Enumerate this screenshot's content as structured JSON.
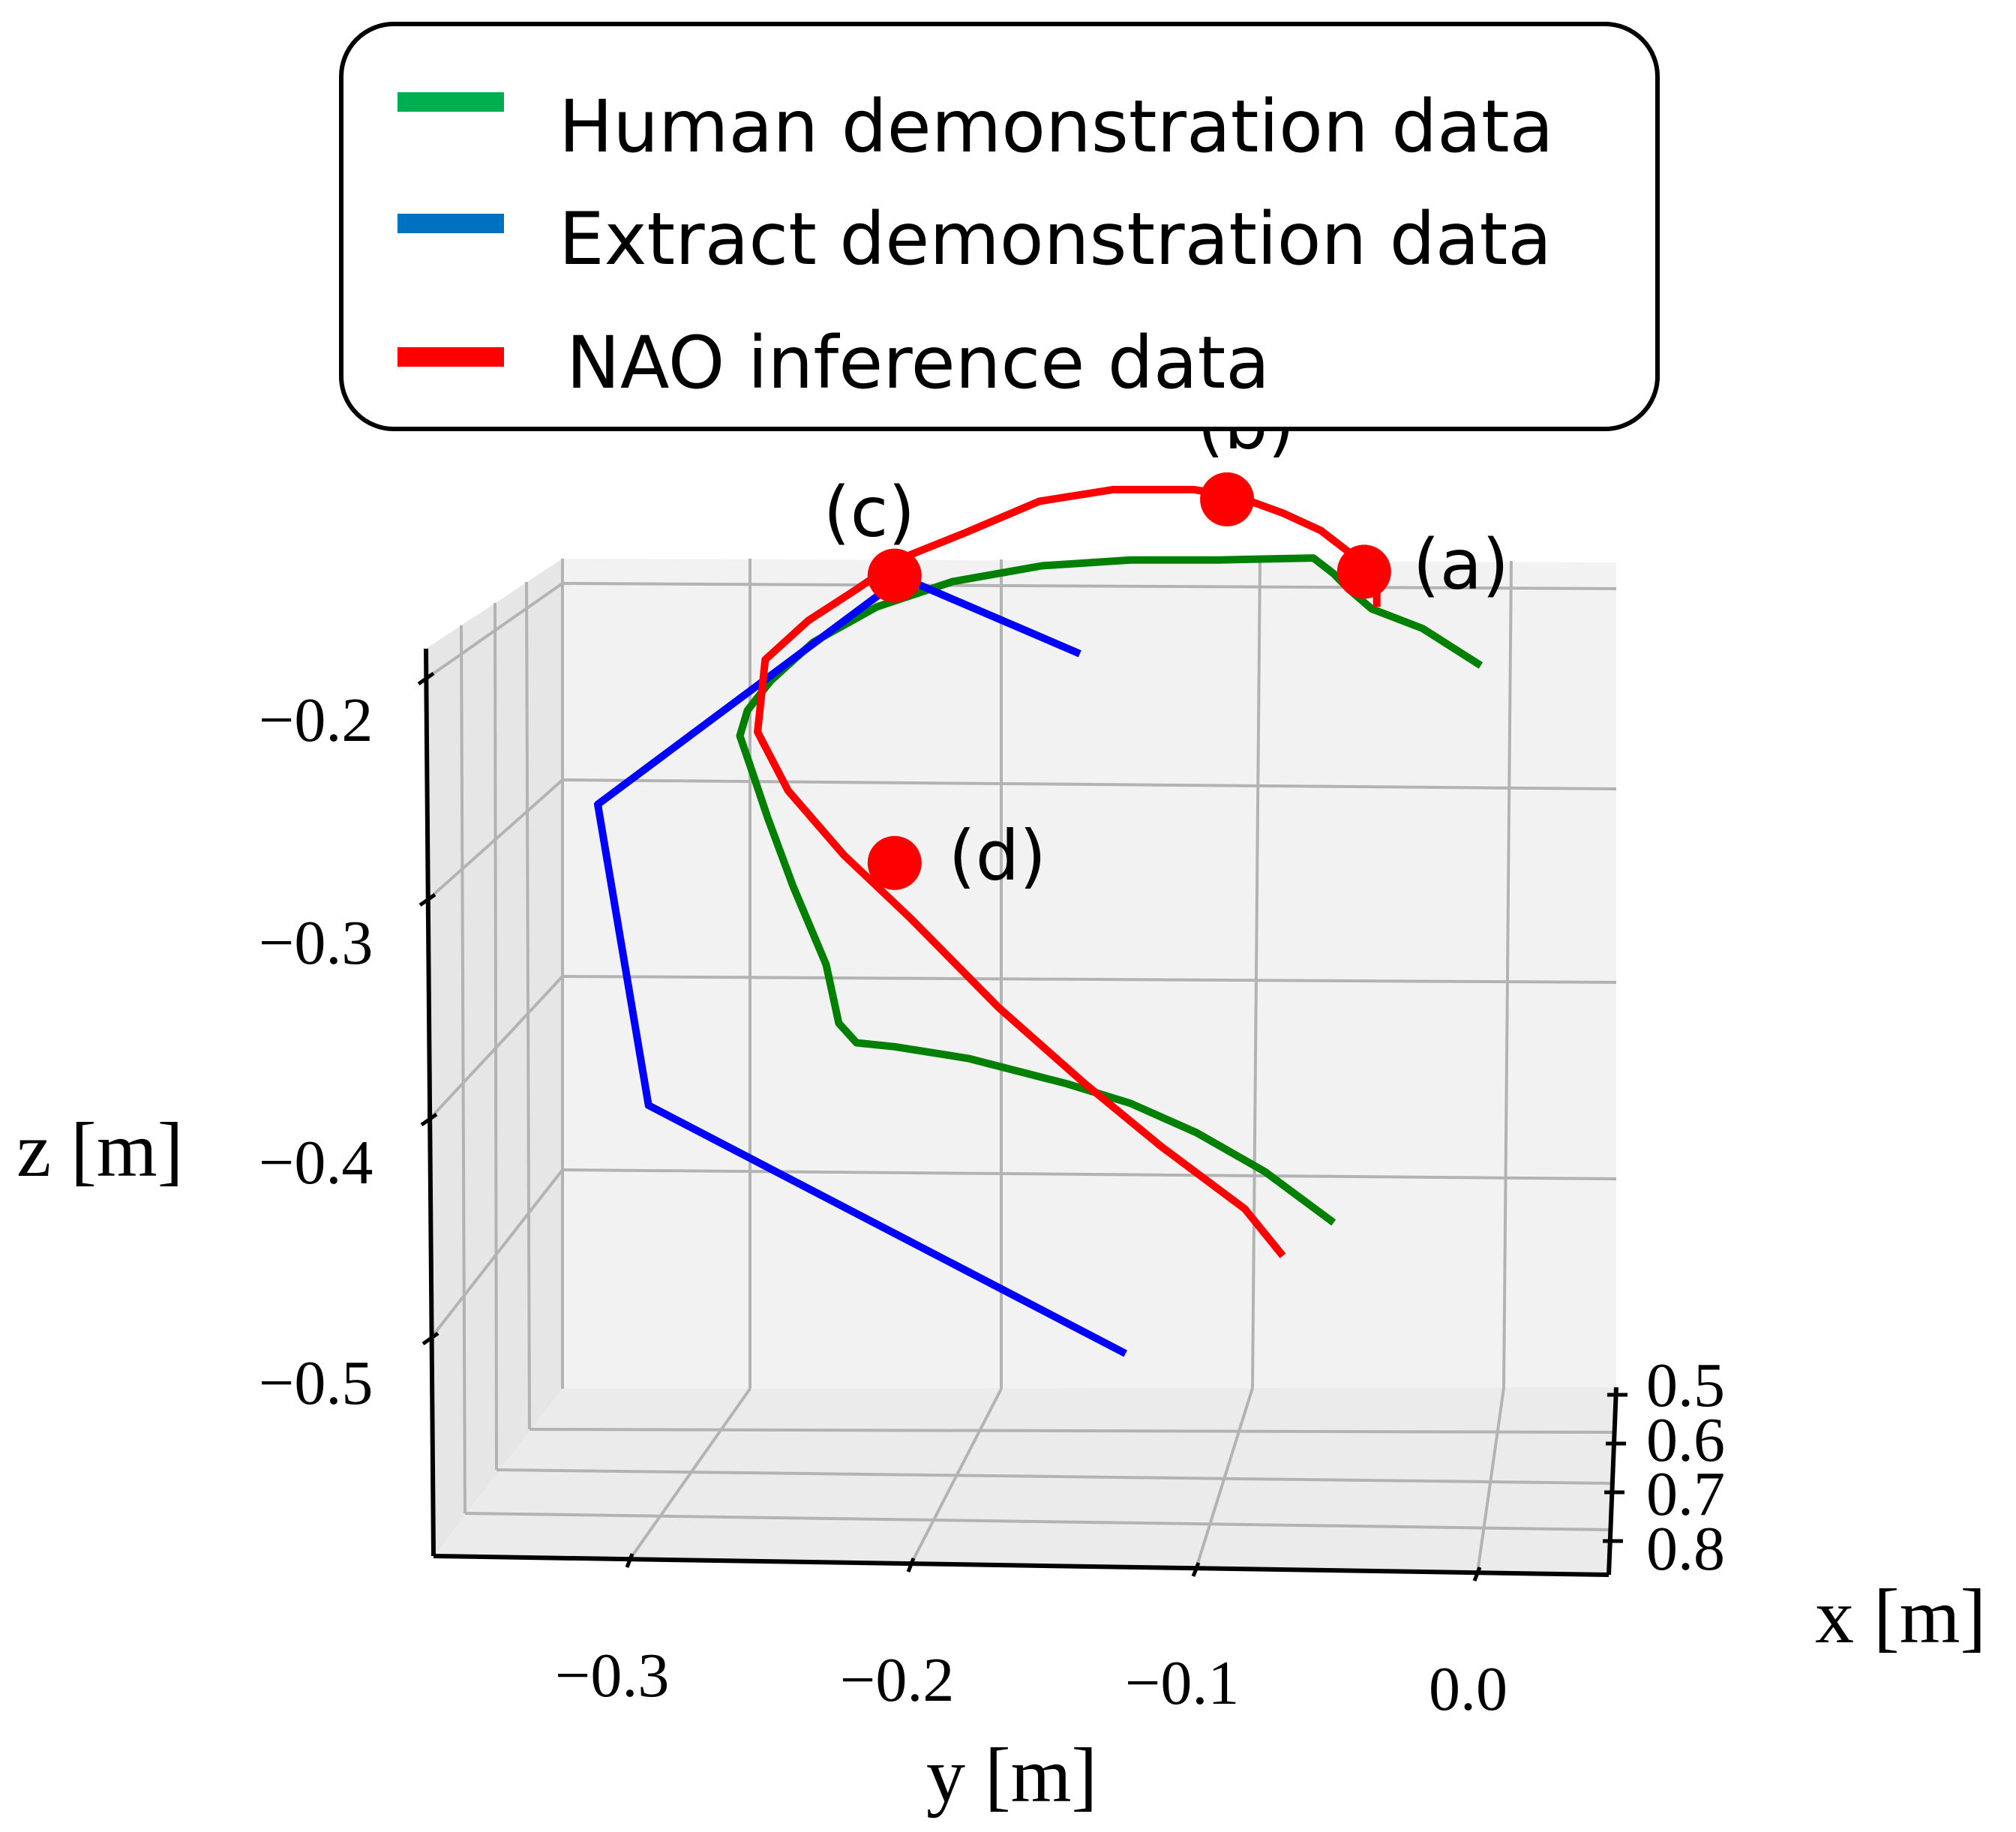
{
  "chart_data": {
    "type": "line",
    "projection": "3d",
    "grid": true,
    "legend_position": "top",
    "xlabel": "x [m]",
    "ylabel": "y [m]",
    "zlabel": "z [m]",
    "x_ticks": [
      "0.5",
      "0.6",
      "0.7",
      "0.8"
    ],
    "y_ticks": [
      "−0.3",
      "−0.2",
      "−0.1",
      "0.0"
    ],
    "z_ticks": [
      "−0.2",
      "−0.3",
      "−0.4",
      "−0.5"
    ],
    "xlim": [
      0.5,
      0.8
    ],
    "ylim": [
      -0.36,
      0.03
    ],
    "zlim": [
      -0.55,
      -0.17
    ],
    "series": [
      {
        "name": "Human demonstration data",
        "color": "#008000",
        "legend_color": "#00b050",
        "points": [
          {
            "y": -0.012,
            "z": -0.242
          },
          {
            "y": -0.035,
            "z": -0.223
          },
          {
            "y": -0.055,
            "z": -0.213
          },
          {
            "y": -0.064,
            "z": -0.203
          },
          {
            "y": -0.07,
            "z": -0.195
          },
          {
            "y": -0.078,
            "z": -0.187
          },
          {
            "y": -0.115,
            "z": -0.188
          },
          {
            "y": -0.15,
            "z": -0.188
          },
          {
            "y": -0.185,
            "z": -0.191
          },
          {
            "y": -0.22,
            "z": -0.199
          },
          {
            "y": -0.25,
            "z": -0.212
          },
          {
            "y": -0.275,
            "z": -0.23
          },
          {
            "y": -0.292,
            "z": -0.25
          },
          {
            "y": -0.301,
            "z": -0.265
          },
          {
            "y": -0.304,
            "z": -0.278
          },
          {
            "y": -0.3,
            "z": -0.293
          },
          {
            "y": -0.293,
            "z": -0.32
          },
          {
            "y": -0.283,
            "z": -0.355
          },
          {
            "y": -0.27,
            "z": -0.395
          },
          {
            "y": -0.265,
            "z": -0.425
          },
          {
            "y": -0.258,
            "z": -0.435
          },
          {
            "y": -0.243,
            "z": -0.437
          },
          {
            "y": -0.214,
            "z": -0.443
          },
          {
            "y": -0.175,
            "z": -0.456
          },
          {
            "y": -0.15,
            "z": -0.466
          },
          {
            "y": -0.124,
            "z": -0.481
          },
          {
            "y": -0.097,
            "z": -0.501
          },
          {
            "y": -0.07,
            "z": -0.527
          }
        ]
      },
      {
        "name": "Extract demonstration data",
        "color": "#0000ff",
        "legend_color": "#0070c0",
        "points": [
          {
            "y": -0.17,
            "z": -0.236
          },
          {
            "y": -0.24,
            "z": -0.197
          },
          {
            "y": -0.36,
            "z": -0.313
          },
          {
            "y": -0.34,
            "z": -0.467
          },
          {
            "y": -0.152,
            "z": -0.594
          }
        ]
      },
      {
        "name": "NAO inference data",
        "color": "#ff0000",
        "legend_color": "#ff0000",
        "points": [
          {
            "y": -0.053,
            "z": -0.212
          },
          {
            "y": -0.053,
            "z": -0.2
          },
          {
            "y": -0.06,
            "z": -0.188
          },
          {
            "y": -0.075,
            "z": -0.173
          },
          {
            "y": -0.09,
            "z": -0.164
          },
          {
            "y": -0.107,
            "z": -0.156
          },
          {
            "y": -0.125,
            "z": -0.152
          },
          {
            "y": -0.157,
            "z": -0.152
          },
          {
            "y": -0.186,
            "z": -0.158
          },
          {
            "y": -0.215,
            "z": -0.174
          },
          {
            "y": -0.24,
            "z": -0.187
          },
          {
            "y": -0.258,
            "z": -0.203
          },
          {
            "y": -0.277,
            "z": -0.219
          },
          {
            "y": -0.294,
            "z": -0.239
          },
          {
            "y": -0.297,
            "z": -0.276
          },
          {
            "y": -0.285,
            "z": -0.306
          },
          {
            "y": -0.263,
            "z": -0.339
          },
          {
            "y": -0.237,
            "z": -0.371
          },
          {
            "y": -0.202,
            "z": -0.417
          },
          {
            "y": -0.168,
            "z": -0.456
          },
          {
            "y": -0.138,
            "z": -0.488
          },
          {
            "y": -0.105,
            "z": -0.52
          },
          {
            "y": -0.09,
            "z": -0.544
          }
        ]
      }
    ],
    "markers": [
      {
        "label": "(a)",
        "y": -0.058,
        "z": -0.194,
        "color": "#ff0000"
      },
      {
        "label": "(b)",
        "y": -0.112,
        "z": -0.157,
        "color": "#ff0000"
      },
      {
        "label": "(c)",
        "y": -0.243,
        "z": -0.196,
        "color": "#ff0000"
      },
      {
        "label": "(d)",
        "y": -0.243,
        "z": -0.343,
        "color": "#ff0000"
      }
    ]
  }
}
